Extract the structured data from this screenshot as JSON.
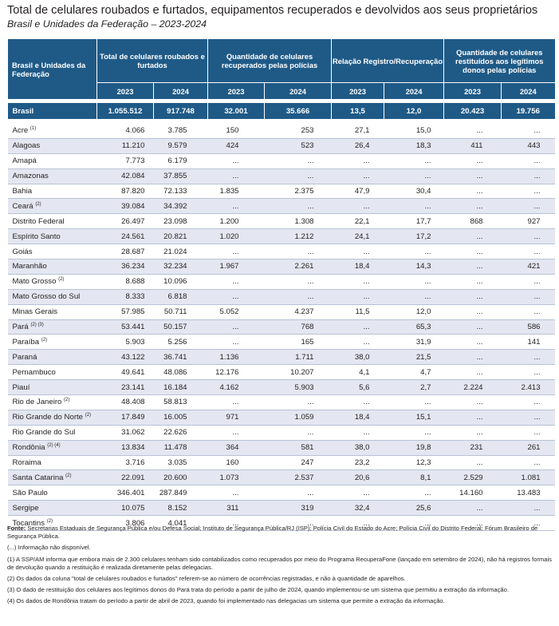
{
  "title": "Total de celulares roubados e furtados, equipamentos recuperados e devolvidos aos seus proprietários",
  "subtitle": "Brasil e Unidades da Federação – 2023-2024",
  "header": {
    "col0": "Brasil e Unidades da Federação",
    "group1": "Total de celulares roubados e furtados",
    "group2": "Quantidade de celulares recuperados pelas polícias",
    "group3": "Relação Registro/Recuperação",
    "group4": "Quantidade de celulares restituídos aos legítimos donos pelas polícias",
    "y2023": "2023",
    "y2024": "2024"
  },
  "brasil": [
    "Brasil",
    "1.055.512",
    "917.748",
    "32.001",
    "35.666",
    "13,5",
    "12,0",
    "20.423",
    "19.756"
  ],
  "rows": [
    {
      "name": "Acre",
      "sup": "(1)",
      "v": [
        "4.066",
        "3.785",
        "150",
        "253",
        "27,1",
        "15,0",
        "...",
        "..."
      ]
    },
    {
      "name": "Alagoas",
      "sup": "",
      "v": [
        "11.210",
        "9.579",
        "424",
        "523",
        "26,4",
        "18,3",
        "411",
        "443"
      ]
    },
    {
      "name": "Amapá",
      "sup": "",
      "v": [
        "7.773",
        "6.179",
        "...",
        "...",
        "...",
        "...",
        "...",
        "..."
      ]
    },
    {
      "name": "Amazonas",
      "sup": "",
      "v": [
        "42.084",
        "37.855",
        "...",
        "...",
        "...",
        "...",
        "...",
        "..."
      ]
    },
    {
      "name": "Bahia",
      "sup": "",
      "v": [
        "87.820",
        "72.133",
        "1.835",
        "2.375",
        "47,9",
        "30,4",
        "...",
        "..."
      ]
    },
    {
      "name": "Ceará",
      "sup": "(2)",
      "v": [
        "39.084",
        "34.392",
        "...",
        "...",
        "...",
        "...",
        "...",
        "..."
      ]
    },
    {
      "name": "Distrito Federal",
      "sup": "",
      "v": [
        "26.497",
        "23.098",
        "1.200",
        "1.308",
        "22,1",
        "17,7",
        "868",
        "927"
      ]
    },
    {
      "name": "Espírito Santo",
      "sup": "",
      "v": [
        "24.561",
        "20.821",
        "1.020",
        "1.212",
        "24,1",
        "17,2",
        "...",
        "..."
      ]
    },
    {
      "name": "Goiás",
      "sup": "",
      "v": [
        "28.687",
        "21.024",
        "...",
        "...",
        "...",
        "...",
        "...",
        "..."
      ]
    },
    {
      "name": "Maranhão",
      "sup": "",
      "v": [
        "36.234",
        "32.234",
        "1.967",
        "2.261",
        "18,4",
        "14,3",
        "...",
        "421"
      ]
    },
    {
      "name": "Mato Grosso",
      "sup": "(2)",
      "v": [
        "8.688",
        "10.096",
        "...",
        "...",
        "...",
        "...",
        "...",
        "..."
      ]
    },
    {
      "name": "Mato Grosso do Sul",
      "sup": "",
      "v": [
        "8.333",
        "6.818",
        "...",
        "...",
        "...",
        "...",
        "...",
        "..."
      ]
    },
    {
      "name": "Minas Gerais",
      "sup": "",
      "v": [
        "57.985",
        "50.711",
        "5.052",
        "4.237",
        "11,5",
        "12,0",
        "...",
        "..."
      ]
    },
    {
      "name": "Pará",
      "sup": "(2) (3)",
      "v": [
        "53.441",
        "50.157",
        "...",
        "768",
        "...",
        "65,3",
        "...",
        "586"
      ]
    },
    {
      "name": "Paraíba",
      "sup": "(2)",
      "v": [
        "5.903",
        "5.256",
        "...",
        "165",
        "...",
        "31,9",
        "...",
        "141"
      ]
    },
    {
      "name": "Paraná",
      "sup": "",
      "v": [
        "43.122",
        "36.741",
        "1.136",
        "1.711",
        "38,0",
        "21,5",
        "...",
        "..."
      ]
    },
    {
      "name": "Pernambuco",
      "sup": "",
      "v": [
        "49.641",
        "48.086",
        "12.176",
        "10.207",
        "4,1",
        "4,7",
        "...",
        "..."
      ]
    },
    {
      "name": "Piauí",
      "sup": "",
      "v": [
        "23.141",
        "16.184",
        "4.162",
        "5.903",
        "5,6",
        "2,7",
        "2.224",
        "2.413"
      ]
    },
    {
      "name": "Rio de Janeiro",
      "sup": "(2)",
      "v": [
        "48.408",
        "58.813",
        "...",
        "...",
        "...",
        "...",
        "...",
        "..."
      ]
    },
    {
      "name": "Rio Grande do Norte",
      "sup": "(2)",
      "v": [
        "17.849",
        "16.005",
        "971",
        "1.059",
        "18,4",
        "15,1",
        "...",
        "..."
      ]
    },
    {
      "name": "Rio Grande do Sul",
      "sup": "",
      "v": [
        "31.062",
        "22.626",
        "...",
        "...",
        "...",
        "...",
        "...",
        "..."
      ]
    },
    {
      "name": "Rondônia",
      "sup": "(2) (4)",
      "v": [
        "13.834",
        "11.478",
        "364",
        "581",
        "38,0",
        "19,8",
        "231",
        "261"
      ]
    },
    {
      "name": "Roraima",
      "sup": "",
      "v": [
        "3.716",
        "3.035",
        "160",
        "247",
        "23,2",
        "12,3",
        "...",
        "..."
      ]
    },
    {
      "name": "Santa Catarina",
      "sup": "(2)",
      "v": [
        "22.091",
        "20.600",
        "1.073",
        "2.537",
        "20,6",
        "8,1",
        "2.529",
        "1.081"
      ]
    },
    {
      "name": "São Paulo",
      "sup": "",
      "v": [
        "346.401",
        "287.849",
        "...",
        "...",
        "...",
        "...",
        "14.160",
        "13.483"
      ]
    },
    {
      "name": "Sergipe",
      "sup": "",
      "v": [
        "10.075",
        "8.152",
        "311",
        "319",
        "32,4",
        "25,6",
        "...",
        "..."
      ]
    },
    {
      "name": "Tocantins",
      "sup": "(2)",
      "v": [
        "3.806",
        "4.041",
        "...",
        "...",
        "...",
        "...",
        "...",
        "..."
      ]
    }
  ],
  "notes": {
    "fonte_label": "Fonte:",
    "fonte": "Secretarias Estaduais de Segurança Pública e/ou Defesa Social; Instituto de Segurança Pública/RJ (ISP); Polícia Civil do Estado do Acre; Polícia Civil do Distrito Federal; Fórum Brasileiro de Segurança Pública.",
    "n0": "(...) Informação não disponível.",
    "n1": "(1) A SSP/AM informa que embora mais de 2.300 celulares tenham sido contabilizados como recuperados por meio do Programa RecuperaFone (lançado em setembro de 2024), não há registros formais de devolução quando a restituição é realizada diretamente pelas delegacias.",
    "n2": "(2) Os dados da coluna \"total de celulares roubados e furtados\" referem-se ao número de ocorrências registradas, e não à quantidade de aparelhos.",
    "n3": "(3) O dado de restituição dos celulares aos legítimos donos do Pará trata do período a partir de julho de 2024, quando implementou-se um sistema que permitiu a extração da informação.",
    "n4": "(4) Os dados de Rondônia tratam do período a partir de abril de 2023, quando foi implementado nas delegacias um sistema que permite a extração da informação."
  }
}
